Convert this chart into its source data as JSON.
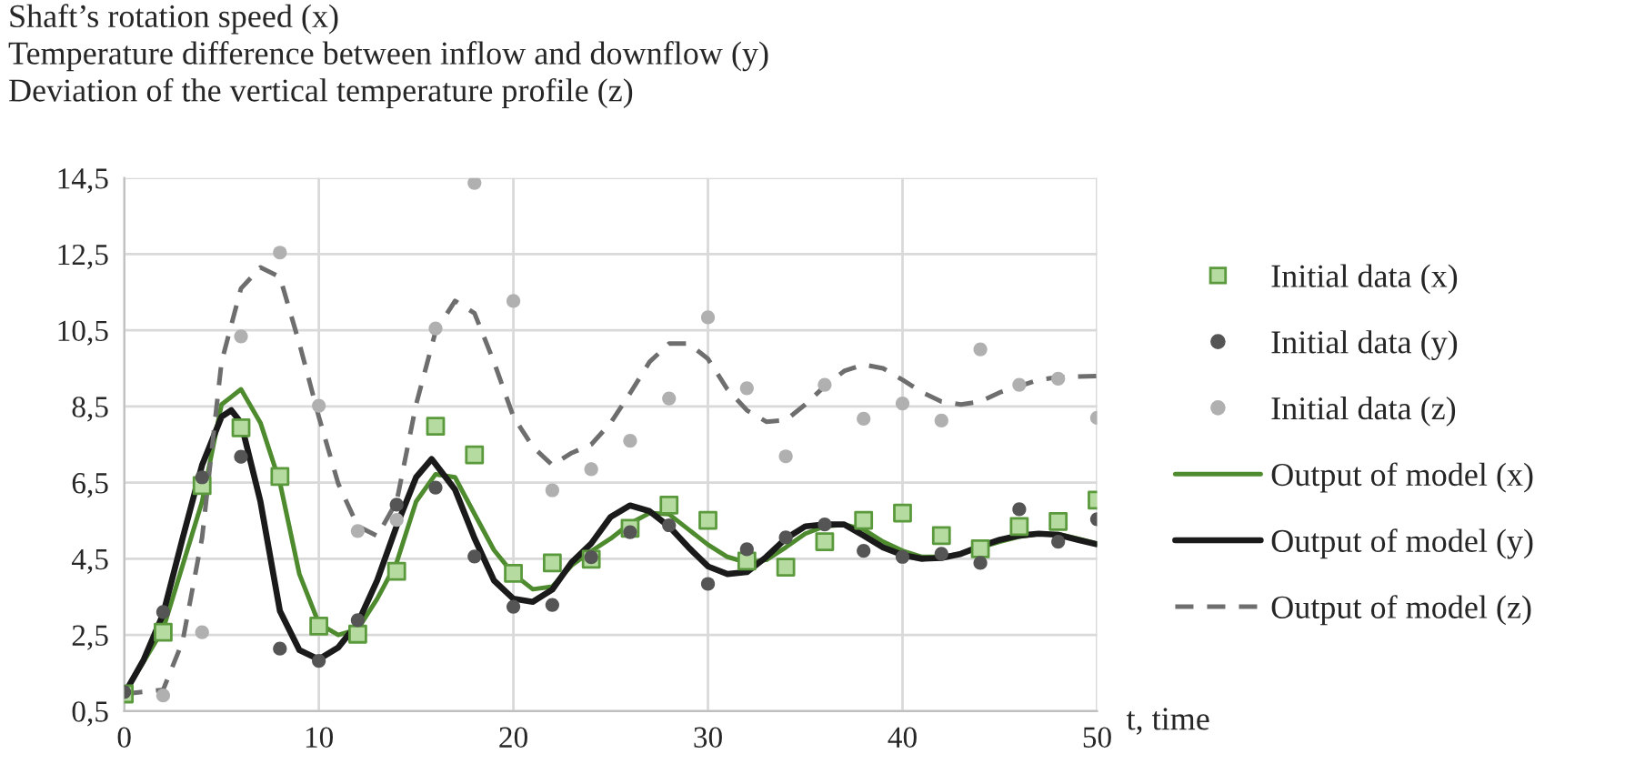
{
  "chart_data": {
    "type": "line",
    "title": "Shaft’s rotation speed (x)\nTemperature difference between inflow and downflow (y)\nDeviation of the vertical temperature profile (z)",
    "xlabel": "t, time",
    "series": [
      {
        "name": "Initial data (x)",
        "type": "scatter",
        "marker": "square",
        "color": "#b5dba0",
        "x": [
          0,
          2,
          4,
          6,
          8,
          10,
          12,
          14,
          16,
          18,
          20,
          22,
          24,
          26,
          28,
          30,
          32,
          34,
          36,
          38,
          40,
          42,
          44,
          46,
          48,
          50
        ],
        "values": [
          0.95,
          2.57,
          6.42,
          7.94,
          6.66,
          2.73,
          2.52,
          4.17,
          7.98,
          7.23,
          4.12,
          4.39,
          4.49,
          5.3,
          5.91,
          5.51,
          4.44,
          4.28,
          4.95,
          5.51,
          5.7,
          5.11,
          4.76,
          5.35,
          5.48,
          6.04
        ]
      },
      {
        "name": "Initial data (y)",
        "type": "scatter",
        "marker": "circle",
        "color": "#555555",
        "x": [
          0,
          2,
          4,
          6,
          8,
          10,
          12,
          14,
          16,
          18,
          20,
          22,
          24,
          26,
          28,
          30,
          32,
          34,
          36,
          38,
          40,
          42,
          44,
          46,
          48,
          50
        ],
        "values": [
          1.0,
          3.1,
          6.64,
          7.18,
          2.14,
          1.82,
          2.89,
          5.92,
          6.37,
          4.56,
          3.24,
          3.29,
          4.54,
          5.2,
          5.38,
          3.84,
          4.75,
          5.06,
          5.4,
          4.71,
          4.55,
          4.63,
          4.39,
          5.8,
          4.95,
          5.54
        ]
      },
      {
        "name": "Initial data (z)",
        "type": "scatter",
        "marker": "circle",
        "color": "#b0b0b0",
        "x": [
          2,
          4,
          6,
          8,
          10,
          12,
          14,
          16,
          18,
          20,
          22,
          24,
          26,
          28,
          30,
          32,
          34,
          36,
          38,
          40,
          42,
          44,
          46,
          48,
          50
        ],
        "values": [
          0.91,
          2.57,
          10.34,
          12.54,
          8.52,
          5.23,
          5.52,
          10.55,
          14.37,
          11.27,
          6.3,
          6.85,
          7.6,
          8.71,
          10.84,
          8.98,
          7.19,
          9.07,
          8.18,
          8.58,
          8.13,
          10.0,
          9.07,
          9.23,
          8.2
        ]
      },
      {
        "name": "Output of model (x)",
        "line_style": "solid",
        "color": "#4e8a2e",
        "x": [
          0,
          2,
          4,
          5,
          6,
          7,
          8,
          9,
          10,
          11,
          12,
          13,
          14,
          15,
          16,
          17,
          18,
          19,
          20,
          21,
          22,
          23,
          24,
          25,
          26,
          27,
          28,
          29,
          30,
          31,
          32,
          33,
          34,
          35,
          36,
          37,
          38,
          39,
          40,
          41,
          42,
          43,
          44,
          45,
          46,
          47,
          48,
          49,
          50
        ],
        "values": [
          0.95,
          2.65,
          6.0,
          8.55,
          8.95,
          8.07,
          6.5,
          4.1,
          2.8,
          2.5,
          2.65,
          3.45,
          4.4,
          6.0,
          6.72,
          6.64,
          5.68,
          4.73,
          4.1,
          3.7,
          3.77,
          4.33,
          4.7,
          5.03,
          5.43,
          5.7,
          5.67,
          5.27,
          4.87,
          4.55,
          4.4,
          4.47,
          4.8,
          5.16,
          5.35,
          5.4,
          5.27,
          4.95,
          4.71,
          4.55,
          4.55,
          4.63,
          4.8,
          4.95,
          5.08,
          5.15,
          5.15,
          5.03,
          4.9
        ]
      },
      {
        "name": "Output of model (y)",
        "line_style": "solid",
        "color": "#1a1a1a",
        "x": [
          0,
          1,
          2,
          3,
          4,
          5,
          5.5,
          6,
          7,
          8,
          9,
          10,
          11,
          12,
          13,
          14,
          15,
          15.8,
          17,
          18,
          19,
          20,
          21,
          22,
          23,
          24,
          25,
          26,
          27,
          28,
          29,
          30,
          31,
          32,
          33,
          34,
          35,
          36,
          37,
          38,
          39,
          40,
          41,
          42,
          43,
          44,
          45,
          46,
          47,
          48,
          49,
          50
        ],
        "values": [
          0.95,
          1.85,
          3.05,
          5.04,
          6.96,
          8.23,
          8.4,
          8.07,
          6.0,
          3.13,
          2.1,
          1.86,
          2.17,
          2.81,
          3.93,
          5.36,
          6.64,
          7.12,
          6.32,
          5.04,
          3.93,
          3.45,
          3.37,
          3.69,
          4.41,
          4.9,
          5.6,
          5.9,
          5.75,
          5.35,
          4.8,
          4.3,
          4.1,
          4.15,
          4.55,
          5.03,
          5.35,
          5.4,
          5.4,
          5.11,
          4.8,
          4.6,
          4.5,
          4.52,
          4.63,
          4.83,
          5.0,
          5.11,
          5.16,
          5.13,
          5.0,
          4.88
        ]
      },
      {
        "name": "Output of model (z)",
        "line_style": "dashed",
        "color": "#6e6e6e",
        "x": [
          0,
          2,
          3,
          4,
          5,
          6,
          7,
          8,
          9,
          10,
          11,
          12,
          13,
          14,
          15,
          16,
          17,
          18,
          19,
          20,
          21,
          22,
          23,
          24,
          25,
          26,
          27,
          28,
          29,
          30,
          31,
          32,
          33,
          34,
          35,
          36,
          37,
          38,
          39,
          40,
          41,
          42,
          43,
          44,
          45,
          46,
          47,
          48,
          50
        ],
        "values": [
          0.95,
          1.06,
          2.33,
          5.05,
          9.67,
          11.6,
          12.15,
          11.9,
          10.15,
          8.23,
          6.47,
          5.36,
          5.1,
          6.0,
          8.55,
          10.47,
          11.27,
          10.95,
          9.67,
          8.23,
          7.44,
          6.96,
          7.28,
          7.5,
          8.07,
          8.85,
          9.67,
          10.15,
          10.15,
          9.75,
          8.95,
          8.4,
          8.1,
          8.14,
          8.55,
          9.03,
          9.43,
          9.6,
          9.5,
          9.2,
          8.87,
          8.63,
          8.55,
          8.63,
          8.87,
          9.03,
          9.2,
          9.27,
          9.3
        ]
      }
    ],
    "xlim": [
      0,
      50
    ],
    "xticks": [
      0,
      10,
      20,
      30,
      40,
      50
    ],
    "ylim": [
      0.5,
      14.5
    ],
    "yticks": [
      {
        "value": 0.5,
        "label": "0,5"
      },
      {
        "value": 2.5,
        "label": "2,5"
      },
      {
        "value": 4.5,
        "label": "4,5"
      },
      {
        "value": 6.5,
        "label": "6,5"
      },
      {
        "value": 8.5,
        "label": "8,5"
      },
      {
        "value": 10.5,
        "label": "10,5"
      },
      {
        "value": 12.5,
        "label": "12,5"
      },
      {
        "value": 14.5,
        "label": "14,5"
      }
    ],
    "grid": true,
    "legend": "right"
  }
}
